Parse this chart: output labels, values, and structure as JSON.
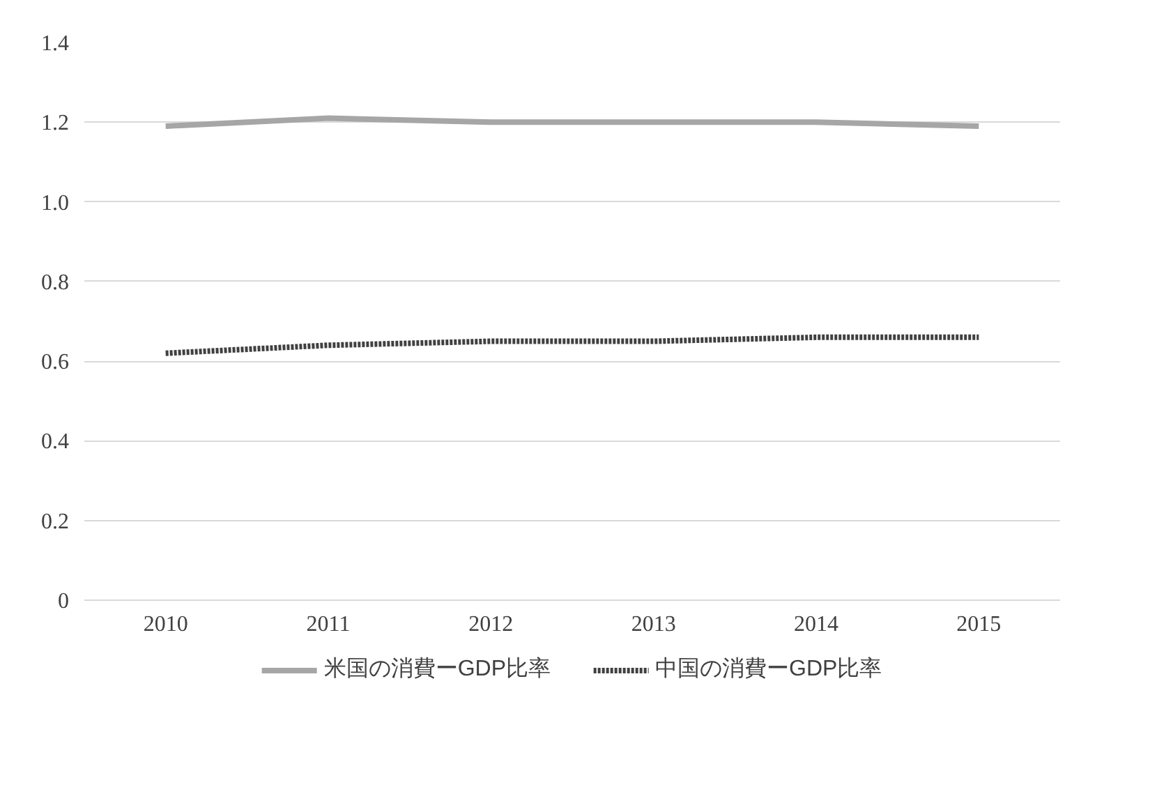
{
  "chart_data": {
    "type": "line",
    "categories": [
      "2010",
      "2011",
      "2012",
      "2013",
      "2014",
      "2015"
    ],
    "series": [
      {
        "name": "米国の消費ーGDP比率",
        "color": "#a6a6a6",
        "line_style": "solid",
        "values": [
          1.19,
          1.21,
          1.2,
          1.2,
          1.2,
          1.19
        ]
      },
      {
        "name": "中国の消費ーGDP比率",
        "color": "#404040",
        "line_style": "dotted",
        "values": [
          0.62,
          0.64,
          0.65,
          0.65,
          0.66,
          0.66
        ]
      }
    ],
    "ylim": [
      0,
      1.4
    ],
    "yticks": [
      0,
      0.2,
      0.4,
      0.6,
      0.8,
      {
        "value": 1,
        "label": "1.0"
      },
      1.2,
      1.4
    ],
    "grid": "y",
    "legend": "bottom",
    "marker": "none"
  }
}
